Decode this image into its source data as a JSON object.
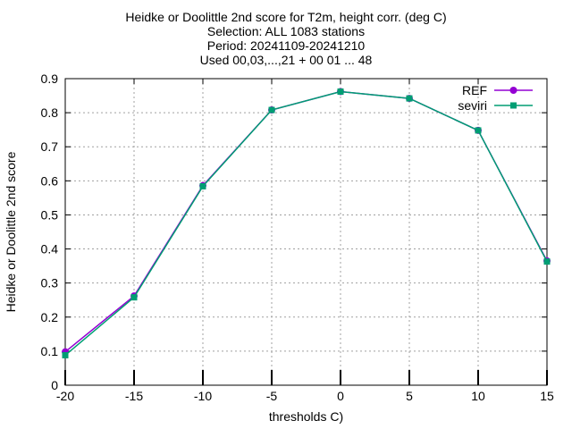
{
  "chart_data": {
    "type": "line",
    "title_lines": [
      "Heidke or Doolittle 2nd score  for T2m, height corr. (deg C)",
      "Selection: ALL    1083 stations",
      "Period: 20241109-20241210",
      "Used 00,03,...,21 + 00 01 ... 48"
    ],
    "xlabel": "thresholds C)",
    "ylabel": "Heidke or Doolittle 2nd score",
    "x": [
      -20,
      -15,
      -10,
      -5,
      0,
      5,
      10,
      15
    ],
    "xlim": [
      -20,
      15
    ],
    "ylim": [
      0,
      0.9
    ],
    "xticks": [
      -20,
      -15,
      -10,
      -5,
      0,
      5,
      10,
      15
    ],
    "xtick_labels": [
      "-20",
      "-15",
      "-10",
      "-5",
      "0",
      "5",
      "10",
      "15"
    ],
    "yticks": [
      0,
      0.1,
      0.2,
      0.3,
      0.4,
      0.5,
      0.6,
      0.7,
      0.8,
      0.9
    ],
    "ytick_labels": [
      "0",
      "0.1",
      "0.2",
      "0.3",
      "0.4",
      "0.5",
      "0.6",
      "0.7",
      "0.8",
      "0.9"
    ],
    "grid": true,
    "legend_position": "top-right",
    "series": [
      {
        "name": "REF",
        "color": "#9400d3",
        "marker": "filled-circle",
        "values": [
          0.098,
          0.262,
          0.586,
          0.808,
          0.862,
          0.842,
          0.748,
          0.365
        ]
      },
      {
        "name": "seviri",
        "color": "#009e73",
        "marker": "filled-square",
        "values": [
          0.088,
          0.258,
          0.584,
          0.808,
          0.862,
          0.842,
          0.748,
          0.363
        ]
      }
    ]
  }
}
